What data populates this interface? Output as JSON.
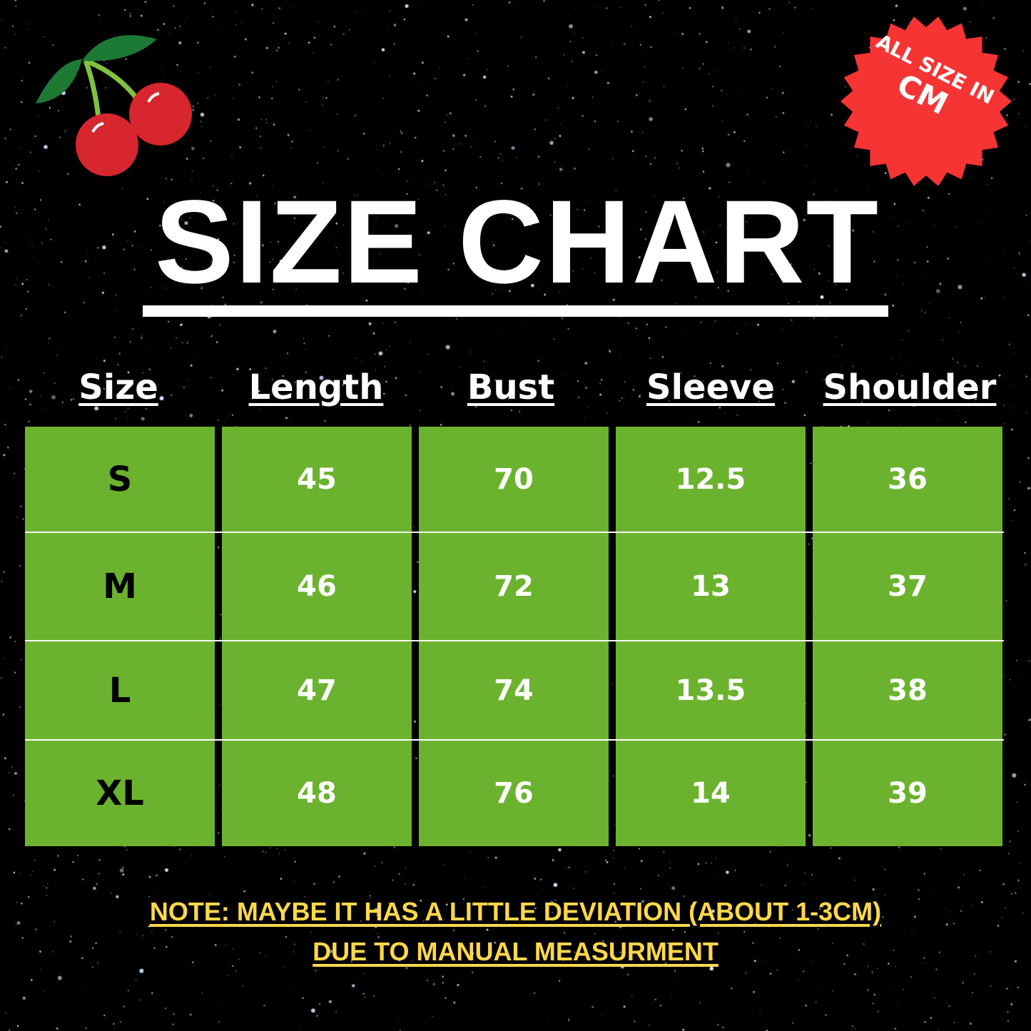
{
  "title": "SIZE CHART",
  "badge": {
    "line1": "ALL SIZE IN",
    "line2": "CM",
    "color": "#f63434"
  },
  "table": {
    "headers": [
      "Size",
      "Length",
      "Bust",
      "Sleeve",
      "Shoulder"
    ],
    "rows": [
      [
        "S",
        "45",
        "70",
        "12.5",
        "36"
      ],
      [
        "M",
        "46",
        "72",
        "13",
        "37"
      ],
      [
        "L",
        "47",
        "74",
        "13.5",
        "38"
      ],
      [
        "XL",
        "48",
        "76",
        "14",
        "39"
      ]
    ],
    "cell_color": "#6bb32e"
  },
  "note": {
    "line1": "NOTE:  MAYBE IT HAS A LITTLE DEVIATION (ABOUT 1-3CM)",
    "line2": "DUE TO MANUAL MEASURMENT",
    "color": "#ffd84a"
  },
  "decoration": {
    "icon": "cherry-icon",
    "background": "starfield"
  }
}
